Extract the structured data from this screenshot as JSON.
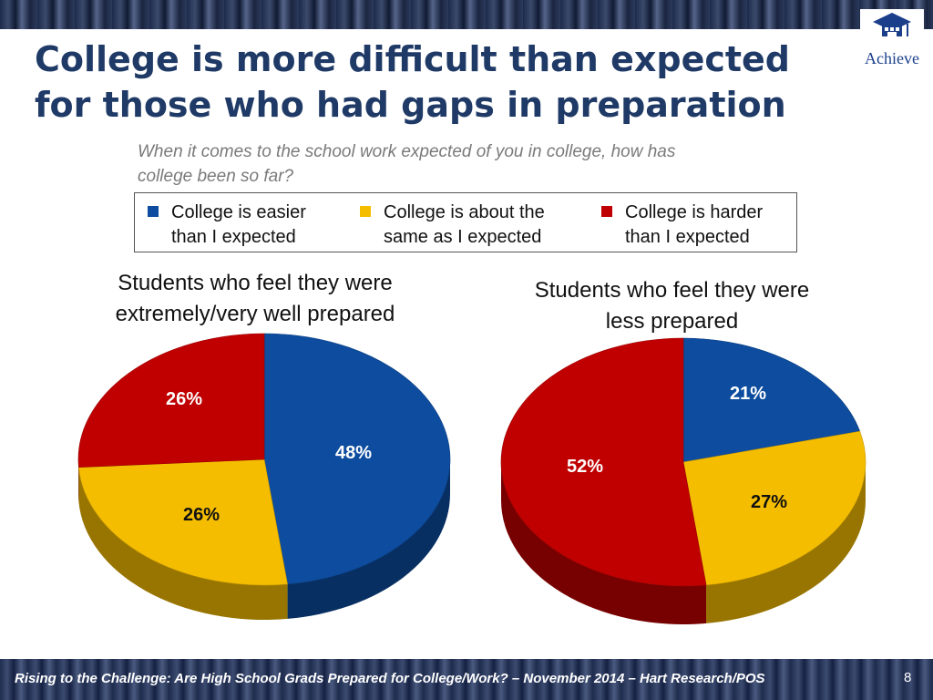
{
  "slide": {
    "title_lines": [
      "College is more difficult than expected",
      "for those who had gaps in preparation"
    ],
    "question_lines": [
      "When it comes to the school work expected of you in college, how has",
      "college been so far?"
    ],
    "logo": "Achieve",
    "footer": "Rising to the Challenge:  Are High School Grads Prepared for College/Work? – November 2014 – Hart Research/POS",
    "page_number": "8"
  },
  "legend": [
    {
      "lines": [
        "College is easier",
        "than I expected"
      ],
      "color": "#0d4c9e"
    },
    {
      "lines": [
        "College is about the",
        "same as I expected"
      ],
      "color": "#f5bd00"
    },
    {
      "lines": [
        "College is harder",
        "than I expected"
      ],
      "color": "#c00000"
    }
  ],
  "chart_data": [
    {
      "type": "pie",
      "title": "Students who feel they were extremely/very well prepared",
      "title_lines": [
        "Students who feel they were",
        "extremely/very well prepared"
      ],
      "categories": [
        "College is easier than I expected",
        "College is about the same as I expected",
        "College is harder than I expected"
      ],
      "values": [
        48,
        26,
        26
      ],
      "labels": [
        "48%",
        "26%",
        "26%"
      ],
      "colors": [
        "#0d4c9e",
        "#f5bd00",
        "#c00000"
      ]
    },
    {
      "type": "pie",
      "title": "Students who feel they were less prepared",
      "title_lines": [
        "Students who feel they were",
        "less prepared"
      ],
      "categories": [
        "College is easier than I expected",
        "College is about the same as I expected",
        "College is harder than I expected"
      ],
      "values": [
        21,
        27,
        52
      ],
      "labels": [
        "21%",
        "27%",
        "52%"
      ],
      "colors": [
        "#0d4c9e",
        "#f5bd00",
        "#c00000"
      ]
    }
  ]
}
